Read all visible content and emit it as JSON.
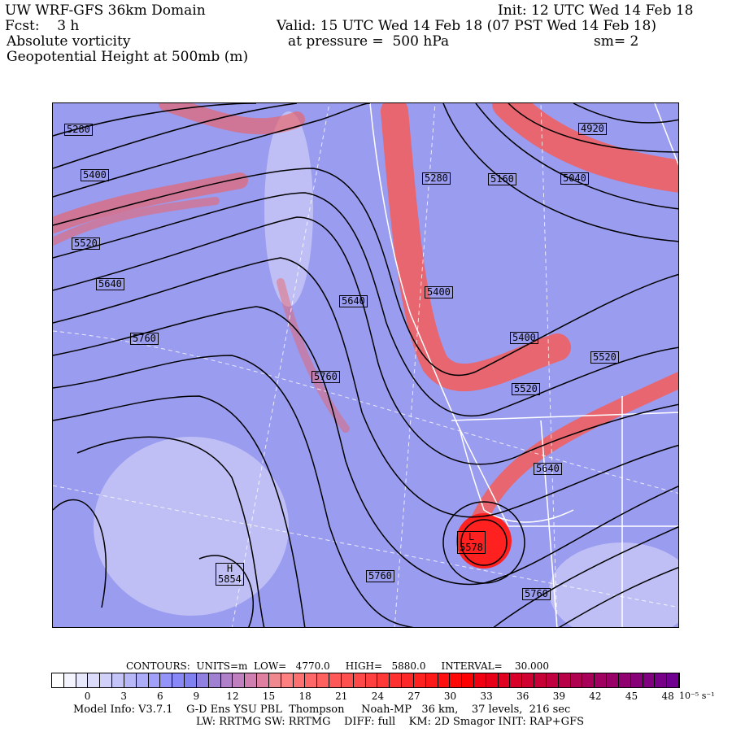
{
  "header": {
    "title": "UW WRF-GFS 36km Domain",
    "init": "Init: 12 UTC Wed 14 Feb 18",
    "fcst": "Fcst:    3 h",
    "valid": "Valid: 15 UTC Wed 14 Feb 18 (07 PST Wed 14 Feb 18)",
    "field": "Absolute vorticity",
    "pressure": "at pressure =  500 hPa",
    "smoothing": "sm= 2",
    "contour_field": "Geopotential Height at 500mb (m)"
  },
  "map": {
    "contour_labels": [
      "5280",
      "5400",
      "5520",
      "5640",
      "5760",
      "5640",
      "5760",
      "5280",
      "5160",
      "5040",
      "4920",
      "5400",
      "5400",
      "5520",
      "5520",
      "5640",
      "5760",
      "5760"
    ],
    "low": {
      "letter": "L",
      "value": "5578"
    },
    "high": {
      "letter": "H",
      "value": "5854"
    },
    "colors": {
      "background": "#9a9cf0",
      "high_vorticity": "#f06060",
      "contour": "#000000",
      "borders": "#ffffff"
    }
  },
  "contours_info": "CONTOURS:  UNITS=m  LOW=   4770.0     HIGH=   5880.0     INTERVAL=    30.000",
  "colorbar": {
    "ticks": [
      "0",
      "3",
      "6",
      "9",
      "12",
      "15",
      "18",
      "21",
      "24",
      "27",
      "30",
      "33",
      "36",
      "39",
      "42",
      "45",
      "48"
    ],
    "units": "10⁻⁵ s⁻¹",
    "colors": [
      "#ffffff",
      "#f4f4fe",
      "#e8e8fc",
      "#dcdcfa",
      "#d0d0f8",
      "#c4c4f8",
      "#b8b8f8",
      "#acacf8",
      "#a0a0f8",
      "#9494f8",
      "#8888f6",
      "#8080f0",
      "#9080e0",
      "#a080d0",
      "#b080c8",
      "#c080c0",
      "#d080b0",
      "#e080a0",
      "#f08890",
      "#ff8080",
      "#ff7070",
      "#ff6868",
      "#ff6060",
      "#ff5858",
      "#ff5050",
      "#ff4848",
      "#ff4040",
      "#ff3838",
      "#ff3030",
      "#ff2828",
      "#ff2020",
      "#ff1818",
      "#ff1010",
      "#ff0808",
      "#ff0000",
      "#f00010",
      "#e80018",
      "#e00020",
      "#d80028",
      "#d00030",
      "#c80038",
      "#c00040",
      "#b80048",
      "#b00050",
      "#a80058",
      "#a00060",
      "#980068",
      "#900070",
      "#880078",
      "#800080",
      "#780088",
      "#700090"
    ]
  },
  "footer": {
    "line1": "Model Info: V3.7.1    G-D Ens YSU PBL  Thompson     Noah-MP   36 km,    37 levels,  216 sec",
    "line2": "LW: RRTMG SW: RRTMG    DIFF: full    KM: 2D Smagor INIT: RAP+GFS"
  }
}
